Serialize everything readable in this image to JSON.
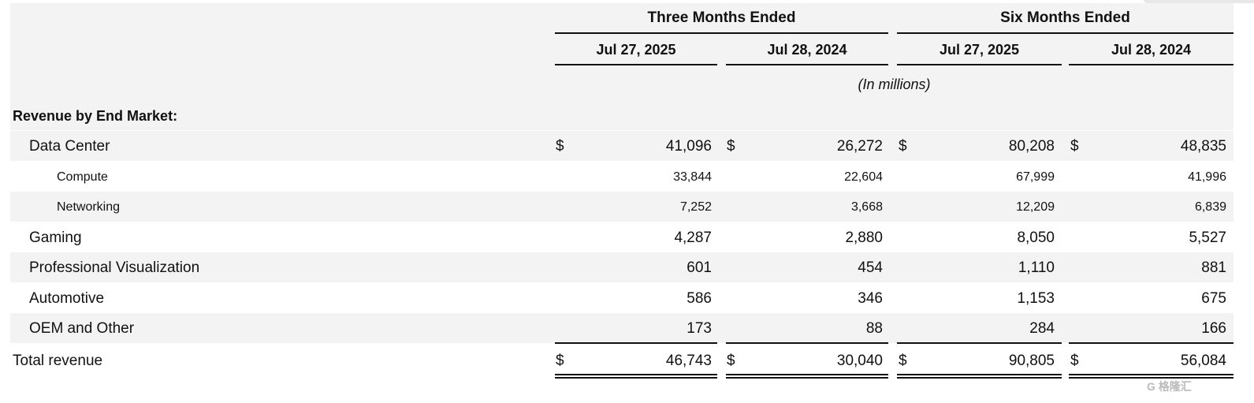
{
  "header": {
    "groups": [
      "Three Months Ended",
      "Six Months Ended"
    ],
    "dates": [
      "Jul 27, 2025",
      "Jul 28, 2024",
      "Jul 27, 2025",
      "Jul 28, 2024"
    ],
    "units": "(In millions)"
  },
  "section_title": "Revenue by End Market:",
  "currency": "$",
  "rows": [
    {
      "label": "Data Center",
      "values": [
        "41,096",
        "26,272",
        "80,208",
        "48,835"
      ]
    },
    {
      "label": "Compute",
      "values": [
        "33,844",
        "22,604",
        "67,999",
        "41,996"
      ]
    },
    {
      "label": "Networking",
      "values": [
        "7,252",
        "3,668",
        "12,209",
        "6,839"
      ]
    },
    {
      "label": "Gaming",
      "values": [
        "4,287",
        "2,880",
        "8,050",
        "5,527"
      ]
    },
    {
      "label": "Professional Visualization",
      "values": [
        "601",
        "454",
        "1,110",
        "881"
      ]
    },
    {
      "label": "Automotive",
      "values": [
        "586",
        "346",
        "1,153",
        "675"
      ]
    },
    {
      "label": "OEM and Other",
      "values": [
        "173",
        "88",
        "284",
        "166"
      ]
    }
  ],
  "total": {
    "label": "Total revenue",
    "values": [
      "46,743",
      "30,040",
      "90,805",
      "56,084"
    ]
  },
  "watermark": "格隆汇",
  "colors": {
    "shade": "#f3f3f3",
    "rule": "#111111"
  }
}
